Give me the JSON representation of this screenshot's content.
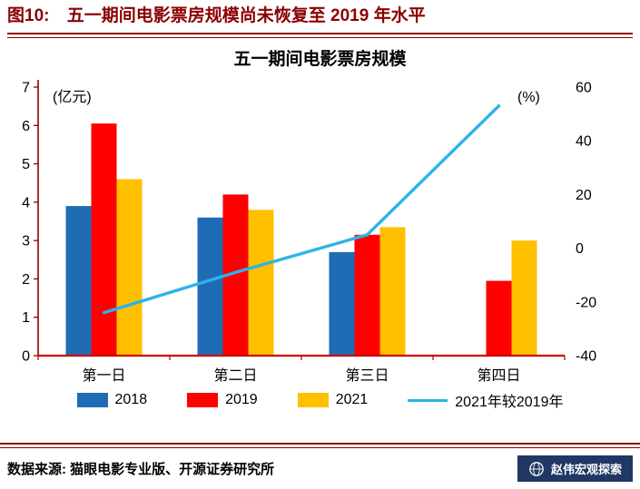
{
  "header": {
    "figure_label": "图10:",
    "title": "五一期间电影票房规模尚未恢复至 2019 年水平"
  },
  "chart_data": {
    "type": "bar",
    "title": "五一期间电影票房规模",
    "categories": [
      "第一日",
      "第二日",
      "第三日",
      "第四日"
    ],
    "left_axis": {
      "label": "(亿元)",
      "min": 0,
      "max": 7,
      "step": 1
    },
    "right_axis": {
      "label": "(%)",
      "min": -40,
      "max": 60,
      "step": 20
    },
    "grid": false,
    "legend_position": "bottom",
    "series": [
      {
        "name": "2018",
        "type": "bar",
        "axis": "left",
        "color": "#1F6CB5",
        "values": [
          3.9,
          3.6,
          2.7,
          null
        ]
      },
      {
        "name": "2019",
        "type": "bar",
        "axis": "left",
        "color": "#FE0000",
        "values": [
          6.05,
          4.2,
          3.15,
          1.95
        ]
      },
      {
        "name": "2021",
        "type": "bar",
        "axis": "left",
        "color": "#FFC000",
        "values": [
          4.6,
          3.8,
          3.35,
          3.0
        ]
      },
      {
        "name": "2021年较2019年",
        "type": "line",
        "axis": "right",
        "color": "#2DB3E8",
        "values": [
          -24,
          -9,
          5,
          53
        ]
      }
    ]
  },
  "footer": {
    "source": "数据来源: 猫眼电影专业版、开源证券研究所",
    "logo_icon": "globe-icon",
    "logo_text": "赵伟宏观探索"
  },
  "colors": {
    "accent": "#8B0000",
    "axis_left": "#8B0000",
    "axis_bottom": "#CC0000",
    "bar_2018": "#1F6CB5",
    "bar_2019": "#FE0000",
    "bar_2021": "#FFC000",
    "line_2021_vs_2019": "#2DB3E8",
    "logo_bg": "#1F3864"
  }
}
